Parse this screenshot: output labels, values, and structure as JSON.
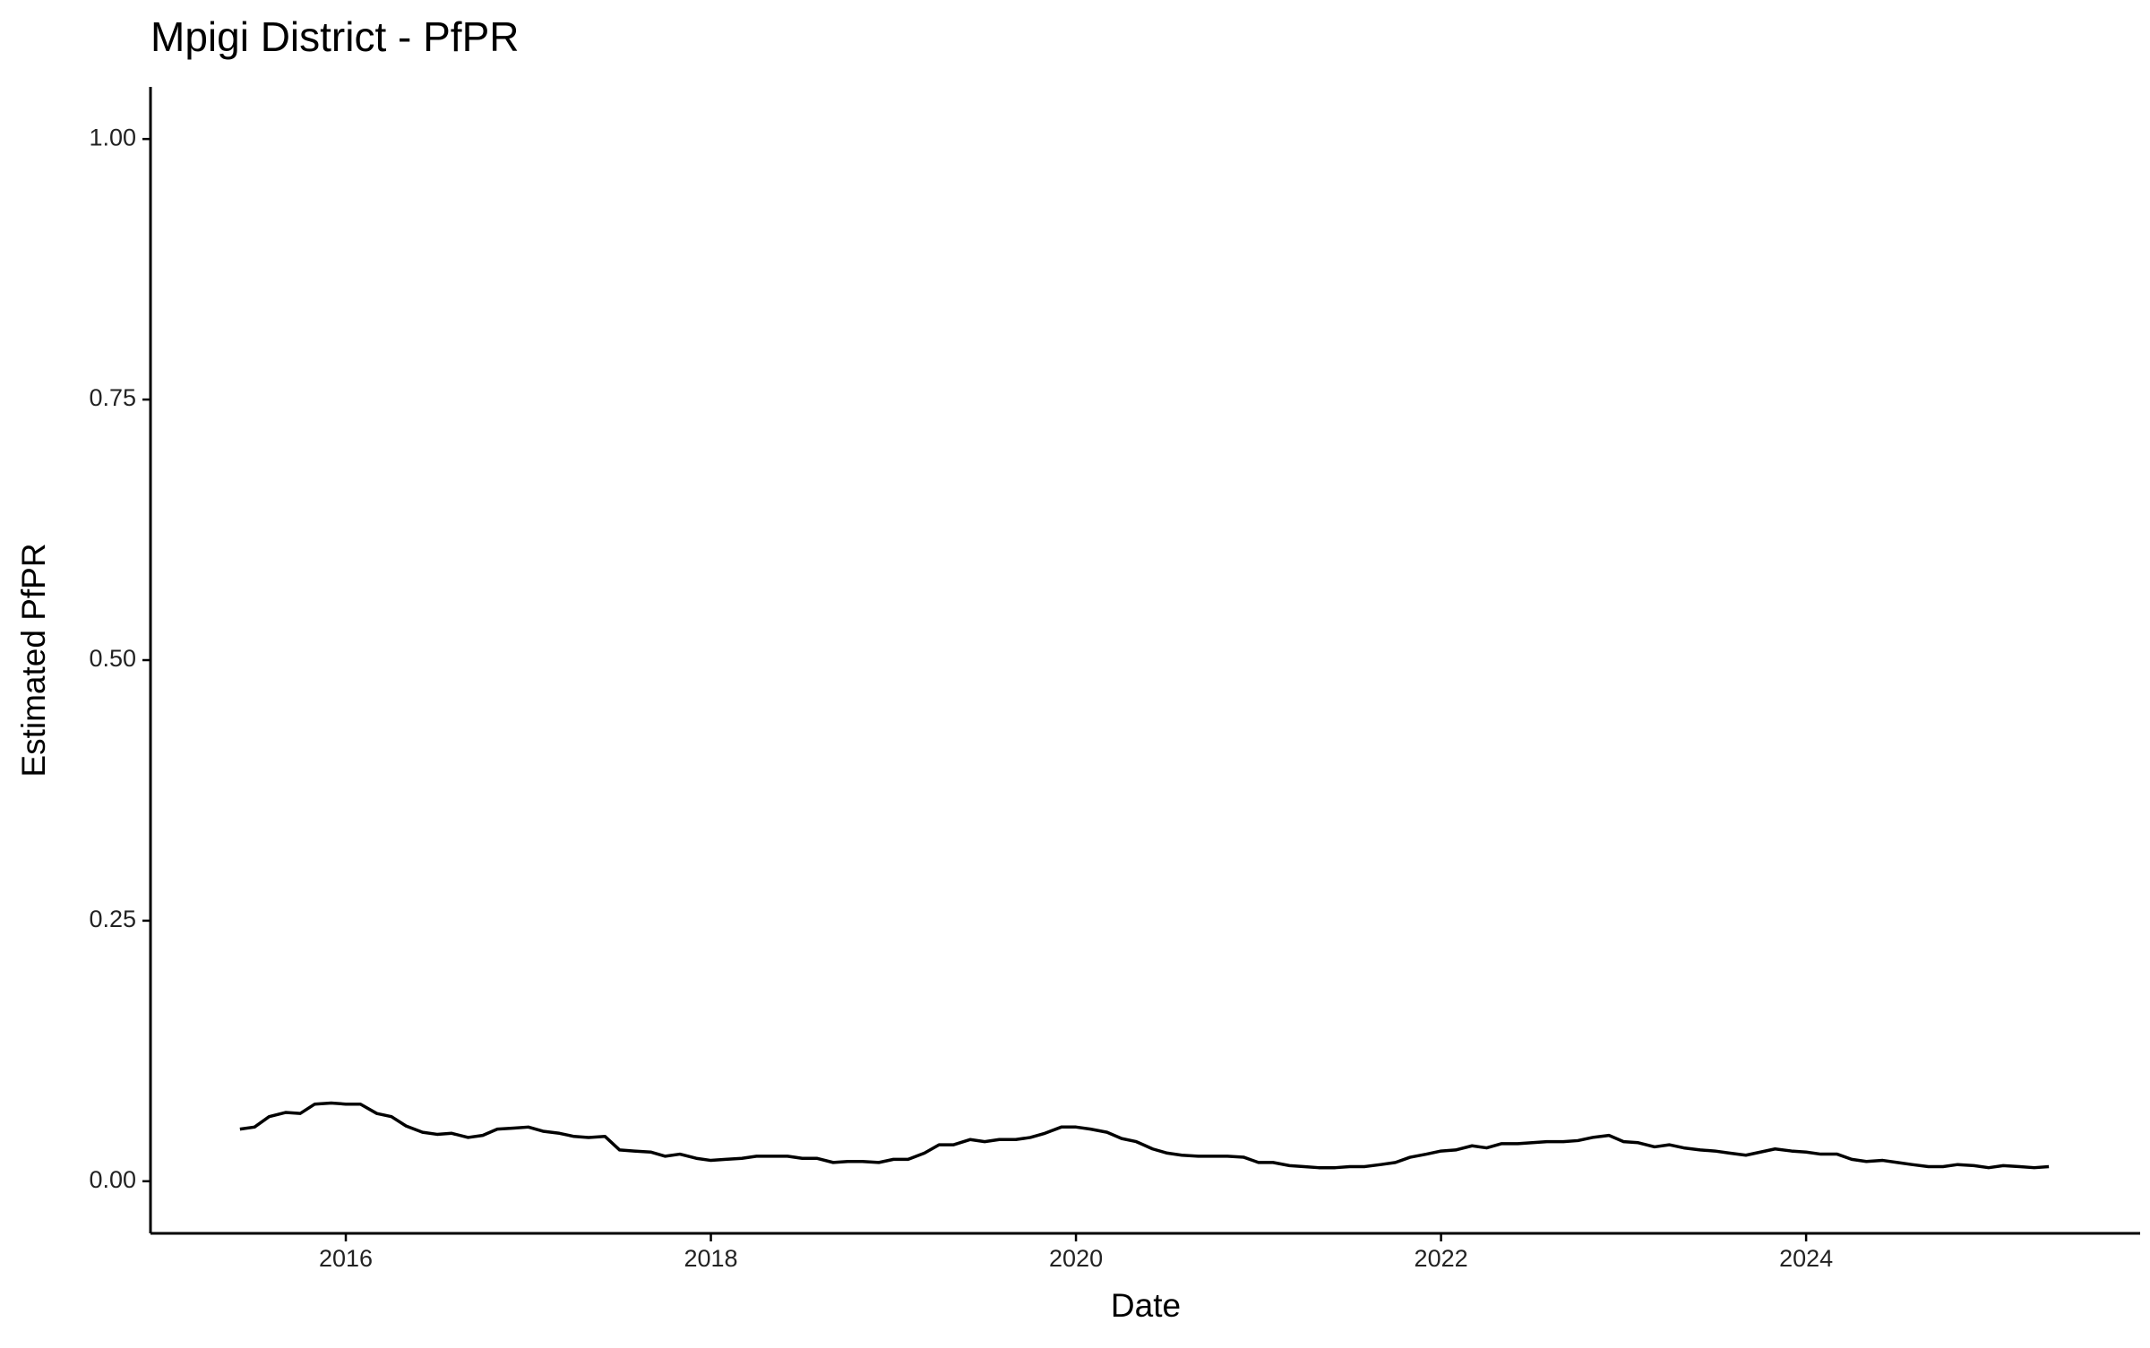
{
  "chart_data": {
    "type": "line",
    "title": "Mpigi District - PfPR",
    "x_label": "Date",
    "y_label": "Estimated PfPR",
    "x": [
      2015.42,
      2015.5,
      2015.58,
      2015.67,
      2015.75,
      2015.83,
      2015.92,
      2016,
      2016.08,
      2016.17,
      2016.25,
      2016.33,
      2016.42,
      2016.5,
      2016.58,
      2016.67,
      2016.75,
      2016.83,
      2016.92,
      2017,
      2017.08,
      2017.17,
      2017.25,
      2017.33,
      2017.42,
      2017.5,
      2017.58,
      2017.67,
      2017.75,
      2017.83,
      2017.92,
      2018,
      2018.08,
      2018.17,
      2018.25,
      2018.33,
      2018.42,
      2018.5,
      2018.58,
      2018.67,
      2018.75,
      2018.83,
      2018.92,
      2019,
      2019.08,
      2019.17,
      2019.25,
      2019.33,
      2019.42,
      2019.5,
      2019.58,
      2019.67,
      2019.75,
      2019.83,
      2019.92,
      2020,
      2020.08,
      2020.17,
      2020.25,
      2020.33,
      2020.42,
      2020.5,
      2020.58,
      2020.67,
      2020.75,
      2020.83,
      2020.92,
      2021,
      2021.08,
      2021.17,
      2021.25,
      2021.33,
      2021.42,
      2021.5,
      2021.58,
      2021.67,
      2021.75,
      2021.83,
      2021.92,
      2022,
      2022.08,
      2022.17,
      2022.25,
      2022.33,
      2022.42,
      2022.5,
      2022.58,
      2022.67,
      2022.75,
      2022.83,
      2022.92,
      2023,
      2023.08,
      2023.17,
      2023.25,
      2023.33,
      2023.42,
      2023.5,
      2023.58,
      2023.67,
      2023.75,
      2023.83,
      2023.92,
      2024,
      2024.08,
      2024.17,
      2024.25,
      2024.33,
      2024.42,
      2024.5,
      2024.58,
      2024.67,
      2024.75,
      2024.83,
      2024.92,
      2025,
      2025.08,
      2025.17,
      2025.25,
      2025.33
    ],
    "series": [
      {
        "name": "PfPR",
        "color": "#000000",
        "values": [
          0.05,
          0.052,
          0.062,
          0.066,
          0.065,
          0.074,
          0.075,
          0.074,
          0.074,
          0.065,
          0.062,
          0.053,
          0.047,
          0.045,
          0.046,
          0.042,
          0.044,
          0.05,
          0.051,
          0.052,
          0.048,
          0.046,
          0.043,
          0.042,
          0.043,
          0.03,
          0.029,
          0.028,
          0.024,
          0.026,
          0.022,
          0.02,
          0.021,
          0.022,
          0.024,
          0.024,
          0.024,
          0.022,
          0.022,
          0.018,
          0.019,
          0.019,
          0.018,
          0.021,
          0.021,
          0.027,
          0.035,
          0.035,
          0.04,
          0.038,
          0.04,
          0.04,
          0.042,
          0.046,
          0.052,
          0.052,
          0.05,
          0.047,
          0.041,
          0.038,
          0.031,
          0.027,
          0.025,
          0.024,
          0.024,
          0.024,
          0.023,
          0.018,
          0.018,
          0.015,
          0.014,
          0.013,
          0.013,
          0.014,
          0.014,
          0.016,
          0.018,
          0.023,
          0.026,
          0.029,
          0.03,
          0.034,
          0.032,
          0.036,
          0.036,
          0.037,
          0.038,
          0.038,
          0.039,
          0.042,
          0.044,
          0.038,
          0.037,
          0.033,
          0.035,
          0.032,
          0.03,
          0.029,
          0.027,
          0.025,
          0.028,
          0.031,
          0.029,
          0.028,
          0.026,
          0.026,
          0.021,
          0.019,
          0.02,
          0.018,
          0.016,
          0.014,
          0.014,
          0.016,
          0.015,
          0.013,
          0.015,
          0.014,
          0.013,
          0.014
        ]
      }
    ],
    "xlim": [
      2014.93,
      2025.83
    ],
    "xticks": [
      2016,
      2018,
      2020,
      2022,
      2024
    ],
    "ylim": [
      -0.05,
      1.05
    ],
    "yticks": [
      {
        "value": 0,
        "label": "0.00"
      },
      {
        "value": 0.25,
        "label": "0.25"
      },
      {
        "value": 0.5,
        "label": "0.50"
      },
      {
        "value": 0.75,
        "label": "0.75"
      },
      {
        "value": 1,
        "label": "1.00"
      }
    ],
    "grid": false
  }
}
